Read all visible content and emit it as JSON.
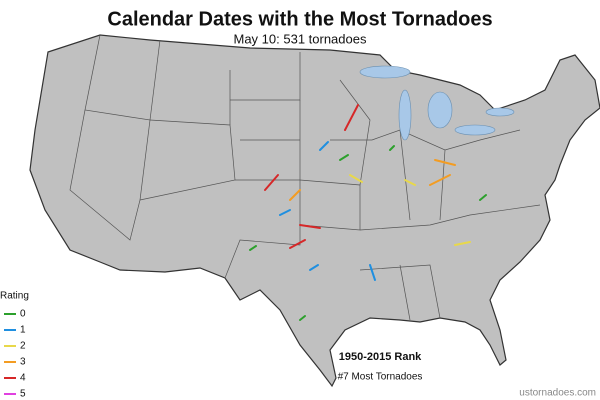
{
  "title": "Calendar Dates with the Most Tornadoes",
  "subtitle": "May 10: 531 tornadoes",
  "legend": {
    "title": "Rating",
    "items": [
      {
        "label": "0",
        "color": "#2ca02c"
      },
      {
        "label": "1",
        "color": "#1f8fe0"
      },
      {
        "label": "2",
        "color": "#e8d84a"
      },
      {
        "label": "3",
        "color": "#f39c22"
      },
      {
        "label": "4",
        "color": "#d62728"
      },
      {
        "label": "5",
        "color": "#e040e0"
      }
    ]
  },
  "rank": {
    "title": "1950-2015 Rank",
    "text": "#7 Most Tornadoes"
  },
  "credit": "ustornadoes.com"
}
